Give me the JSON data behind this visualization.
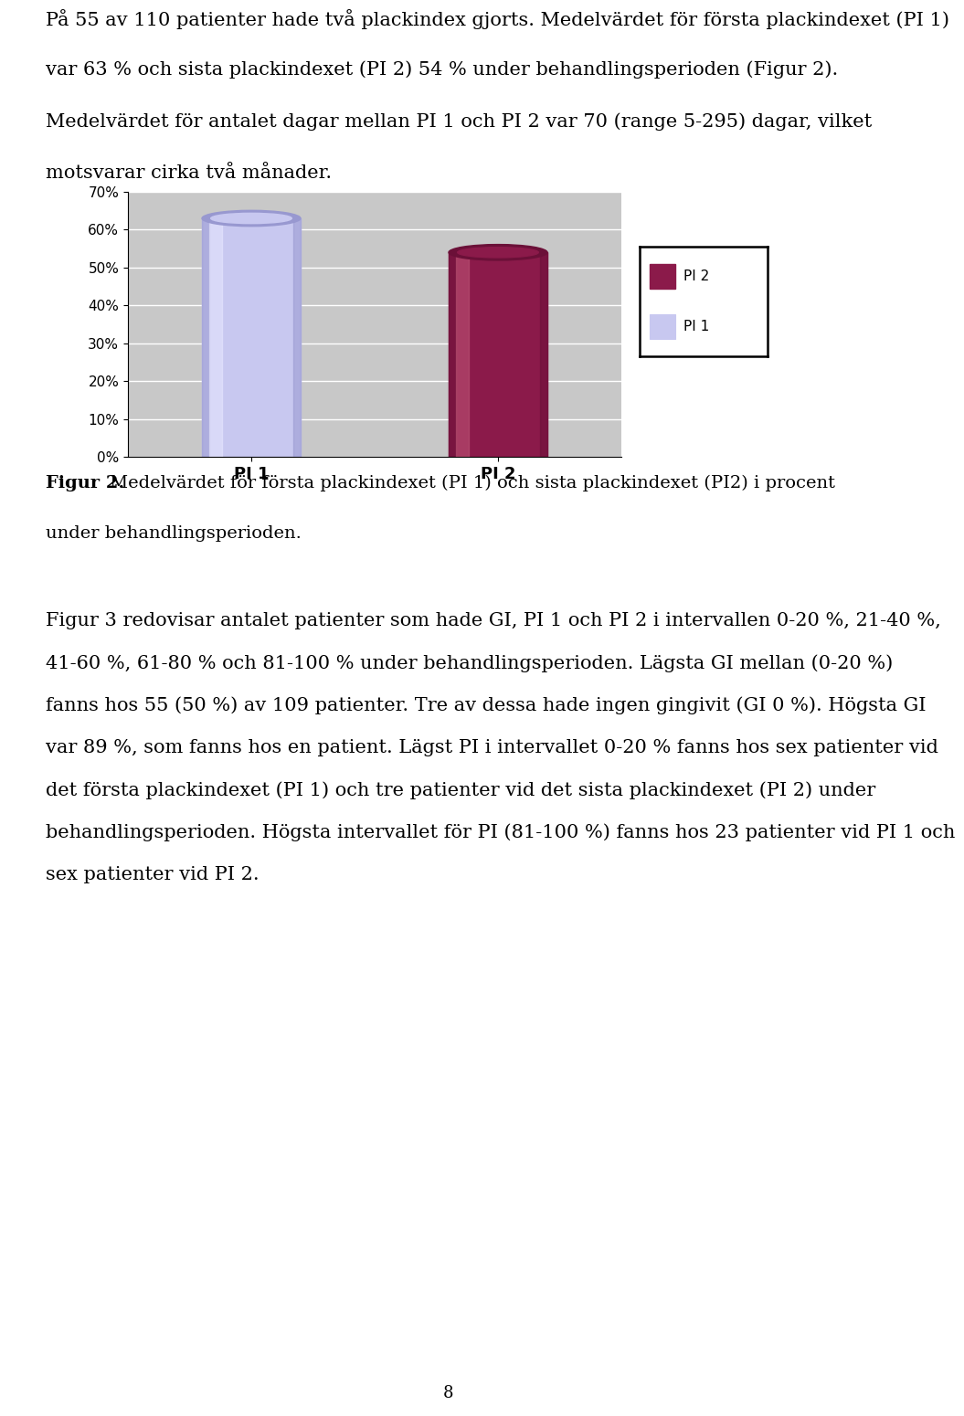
{
  "categories": [
    "PI 1",
    "PI 2"
  ],
  "values": [
    63,
    54
  ],
  "bar_colors_main": [
    "#c8c8f0",
    "#8b1a4a"
  ],
  "bar_colors_light": [
    "#e8e8ff",
    "#c05878"
  ],
  "bar_colors_dark": [
    "#9898d0",
    "#6b1038"
  ],
  "ylim": [
    0,
    70
  ],
  "yticks": [
    0,
    10,
    20,
    30,
    40,
    50,
    60,
    70
  ],
  "ytick_labels": [
    "0%",
    "10%",
    "20%",
    "30%",
    "40%",
    "50%",
    "60%",
    "70%"
  ],
  "legend_labels": [
    "PI 2",
    "PI 1"
  ],
  "legend_colors": [
    "#8b1a4a",
    "#c8c8f0"
  ],
  "plot_bg_color": "#c8c8c8",
  "body_text_fontsize": 15,
  "caption_fontsize": 14,
  "tick_fontsize": 11,
  "page_number": "8",
  "body1": "På 55 av 110 patienter hade två plackindex gjorts. Medelvärdet för första plackindexet (PI 1)\nvar 63 % och sista plackindexet (PI 2) 54 % under behandlingsperioden (Figur 2).\nMedelvärdet för antalet dagar mellan PI 1 och PI 2 var 70 (range 5-295) dagar, vilket\nmotsvarar cirka två månader.",
  "caption_bold": "Figur 2.",
  "caption_normal": " Medelvärdet för första plackindexet (PI 1) och sista plackindexet (PI2) i procent\nunder behandlingsperioden.",
  "body2": "Figur 3 redovisar antalet patienter som hade GI, PI 1 och PI 2 i intervallen 0-20 %, 21-40 %,\n41-60 %, 61-80 % och 81-100 % under behandlingsperioden. Lägsta GI mellan (0-20 %)\nfanns hos 55 (50 %) av 109 patienter. Tre av dessa hade ingen gingivit (GI 0 %). Högsta GI\nvar 89 %, som fanns hos en patient. Lägst PI i intervallet 0-20 % fanns hos sex patienter vid\ndet första plackindexet (PI 1) och tre patienter vid det sista plackindexet (PI 2) under\nbehandlingsperioden. Högsta intervallet för PI (81-100 %) fanns hos 23 patienter vid PI 1 och\nsex patienter vid PI 2."
}
